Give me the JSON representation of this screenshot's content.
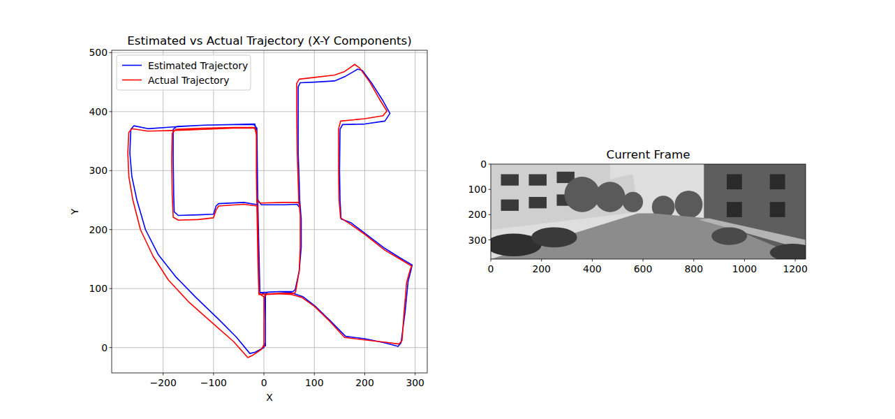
{
  "chart_data": [
    {
      "type": "line",
      "title": "Estimated vs Actual Trajectory (X-Y Components)",
      "x_label": "X",
      "y_label": "Y",
      "xlim": [
        -302,
        324
      ],
      "ylim": [
        -43,
        504
      ],
      "xticks": [
        {
          "value": -200,
          "label": "−200"
        },
        {
          "value": -100,
          "label": "−100"
        },
        0,
        100,
        200,
        300
      ],
      "yticks": [
        0,
        100,
        200,
        300,
        400,
        500
      ],
      "grid": true,
      "legend": "upper left",
      "series": [
        {
          "name": "Estimated Trajectory",
          "color": "#0000ff",
          "x": [
            3,
            3,
            2,
            8,
            30,
            55,
            78,
            102,
            132,
            162,
            200,
            240,
            266,
            272,
            280,
            286,
            292,
            294,
            270,
            240,
            200,
            172,
            153,
            151,
            150,
            151,
            156,
            200,
            240,
            250,
            235,
            214,
            195,
            186,
            162,
            140,
            100,
            72,
            68,
            68,
            68,
            70,
            71,
            74,
            74,
            70,
            62,
            58,
            30,
            -8,
            -10,
            -12,
            -13,
            -14,
            -20,
            -60,
            -120,
            -180,
            -230,
            -258,
            -264,
            -266,
            -262,
            -252,
            -235,
            -210,
            -175,
            -135,
            -90,
            -55,
            -28,
            -18,
            0,
            3,
            3,
            -8,
            -12,
            -40,
            -90,
            -95,
            -100,
            -130,
            -170,
            -178,
            -179,
            -180,
            -180,
            -172,
            -120,
            -60,
            -18,
            -14,
            -14,
            -12,
            -5,
            40,
            66,
            70
          ],
          "values": [
            2,
            45,
            90,
            94,
            95,
            93,
            86,
            70,
            45,
            19,
            15,
            8,
            2,
            8,
            60,
            112,
            132,
            140,
            152,
            168,
            194,
            212,
            218,
            250,
            300,
            370,
            378,
            379,
            384,
            397,
            420,
            448,
            470,
            472,
            460,
            452,
            450,
            449,
            442,
            400,
            330,
            280,
            250,
            218,
            170,
            130,
            98,
            95,
            95,
            93,
            150,
            240,
            300,
            372,
            378,
            378,
            377,
            374,
            371,
            376,
            370,
            330,
            290,
            250,
            200,
            158,
            120,
            85,
            48,
            18,
            -10,
            -8,
            0,
            8,
            90,
            94,
            242,
            246,
            244,
            240,
            226,
            225,
            224,
            230,
            260,
            320,
            370,
            375,
            377,
            378,
            379,
            362,
            300,
            250,
            242,
            242,
            243,
            238
          ]
        },
        {
          "name": "Actual Trajectory",
          "color": "#ff0000",
          "x": [
            0,
            0,
            0,
            5,
            30,
            55,
            75,
            100,
            130,
            160,
            200,
            240,
            268,
            274,
            278,
            283,
            290,
            293,
            270,
            240,
            200,
            170,
            152,
            149,
            148,
            148,
            152,
            200,
            236,
            244,
            230,
            210,
            190,
            180,
            160,
            140,
            100,
            70,
            65,
            65,
            66,
            68,
            69,
            72,
            72,
            70,
            63,
            60,
            30,
            -10,
            -12,
            -14,
            -15,
            -15,
            -20,
            -60,
            -120,
            -180,
            -230,
            -262,
            -268,
            -270,
            -268,
            -260,
            -245,
            -220,
            -190,
            -150,
            -100,
            -60,
            -32,
            -22,
            -5,
            0,
            0,
            -10,
            -13,
            -40,
            -90,
            -95,
            -100,
            -130,
            -170,
            -180,
            -182,
            -183,
            -182,
            -175,
            -120,
            -60,
            -18,
            -15,
            -15,
            -14,
            -8,
            40,
            68,
            72
          ],
          "values": [
            0,
            45,
            86,
            90,
            91,
            90,
            85,
            70,
            45,
            17,
            13,
            9,
            6,
            12,
            60,
            110,
            132,
            138,
            150,
            165,
            192,
            210,
            220,
            250,
            300,
            370,
            384,
            388,
            393,
            401,
            420,
            450,
            474,
            480,
            468,
            462,
            458,
            455,
            448,
            400,
            330,
            280,
            250,
            225,
            170,
            130,
            95,
            92,
            92,
            90,
            150,
            240,
            300,
            368,
            372,
            372,
            370,
            368,
            367,
            371,
            365,
            330,
            290,
            250,
            200,
            155,
            115,
            78,
            40,
            10,
            -17,
            -13,
            -3,
            5,
            86,
            92,
            240,
            243,
            240,
            233,
            220,
            217,
            216,
            221,
            260,
            320,
            363,
            370,
            372,
            373,
            373,
            360,
            300,
            250,
            245,
            246,
            246,
            240
          ]
        }
      ]
    },
    {
      "type": "image",
      "title": "Current Frame",
      "xlim": [
        0,
        1241
      ],
      "ylim": [
        376,
        0
      ],
      "xticks": [
        0,
        200,
        400,
        600,
        800,
        1000,
        1200
      ],
      "yticks": [
        0,
        100,
        200,
        300
      ]
    }
  ]
}
